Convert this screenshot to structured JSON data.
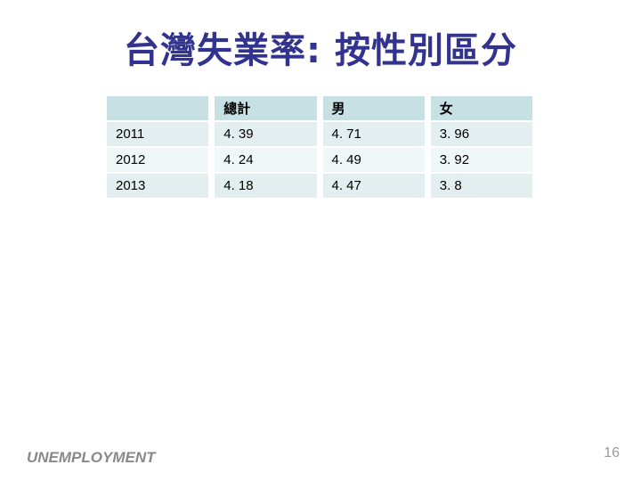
{
  "slide": {
    "title": "台灣失業率: 按性別區分",
    "footer_label": "UNEMPLOYMENT",
    "page_number": "16"
  },
  "table": {
    "headers": [
      "",
      "總計",
      "男",
      "女"
    ],
    "rows": [
      [
        "2011",
        "4. 39",
        "4. 71",
        "3. 96"
      ],
      [
        "2012",
        "4. 24",
        "4. 49",
        "3. 92"
      ],
      [
        "2013",
        "4. 18",
        "4. 47",
        "3. 8"
      ]
    ]
  },
  "chart_data": {
    "type": "table",
    "title": "台灣失業率: 按性別區分",
    "categories": [
      "2011",
      "2012",
      "2013"
    ],
    "series": [
      {
        "name": "總計",
        "values": [
          4.39,
          4.24,
          4.18
        ]
      },
      {
        "name": "男",
        "values": [
          4.71,
          4.49,
          4.47
        ]
      },
      {
        "name": "女",
        "values": [
          3.96,
          3.92,
          3.8
        ]
      }
    ]
  },
  "colors": {
    "title_text": "#32338e",
    "table_header_bg": "#c7e0e3",
    "table_row_odd_bg": "#e2eef0",
    "table_row_even_bg": "#f0f7f8",
    "footer_text": "#898989",
    "page_number_text": "#9a9a9a",
    "background": "#ffffff"
  }
}
